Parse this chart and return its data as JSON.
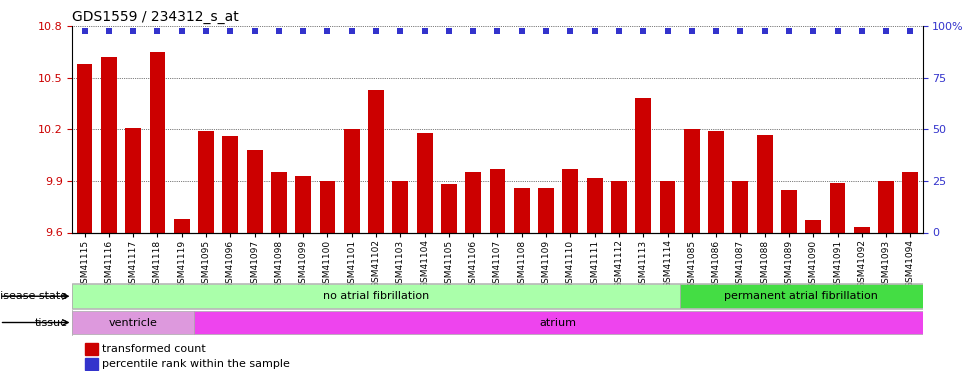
{
  "title": "GDS1559 / 234312_s_at",
  "samples": [
    "GSM41115",
    "GSM41116",
    "GSM41117",
    "GSM41118",
    "GSM41119",
    "GSM41095",
    "GSM41096",
    "GSM41097",
    "GSM41098",
    "GSM41099",
    "GSM41100",
    "GSM41101",
    "GSM41102",
    "GSM41103",
    "GSM41104",
    "GSM41105",
    "GSM41106",
    "GSM41107",
    "GSM41108",
    "GSM41109",
    "GSM41110",
    "GSM41111",
    "GSM41112",
    "GSM41113",
    "GSM41114",
    "GSM41085",
    "GSM41086",
    "GSM41087",
    "GSM41088",
    "GSM41089",
    "GSM41090",
    "GSM41091",
    "GSM41092",
    "GSM41093",
    "GSM41094"
  ],
  "bar_values": [
    10.58,
    10.62,
    10.21,
    10.65,
    9.68,
    10.19,
    10.16,
    10.08,
    9.95,
    9.93,
    9.9,
    10.2,
    10.43,
    9.9,
    10.18,
    9.88,
    9.95,
    9.97,
    9.86,
    9.86,
    9.97,
    9.92,
    9.9,
    10.38,
    9.9,
    10.2,
    10.19,
    9.9,
    10.17,
    9.85,
    9.67,
    9.89,
    9.63,
    9.9,
    9.95
  ],
  "bar_color": "#cc0000",
  "percentile_color": "#3333cc",
  "ylim": [
    9.6,
    10.8
  ],
  "y_ticks": [
    9.6,
    9.9,
    10.2,
    10.5,
    10.8
  ],
  "right_ylim": [
    0,
    100
  ],
  "right_yticks": [
    0,
    25,
    50,
    75,
    100
  ],
  "right_yticklabels": [
    "0",
    "25",
    "50",
    "75",
    "100%"
  ],
  "disease_state_groups": [
    {
      "label": "no atrial fibrillation",
      "start": 0,
      "end": 25,
      "color": "#aaffaa"
    },
    {
      "label": "permanent atrial fibrillation",
      "start": 25,
      "end": 35,
      "color": "#44dd44"
    }
  ],
  "tissue_groups": [
    {
      "label": "ventricle",
      "start": 0,
      "end": 5,
      "color": "#dd99dd"
    },
    {
      "label": "atrium",
      "start": 5,
      "end": 35,
      "color": "#ee44ee"
    }
  ],
  "legend_items": [
    {
      "label": "transformed count",
      "color": "#cc0000"
    },
    {
      "label": "percentile rank within the sample",
      "color": "#3333cc"
    }
  ],
  "bg_color": "#ffffff",
  "tick_label_color_left": "#cc0000",
  "tick_label_color_right": "#3333cc",
  "left_label_color": "#333333"
}
